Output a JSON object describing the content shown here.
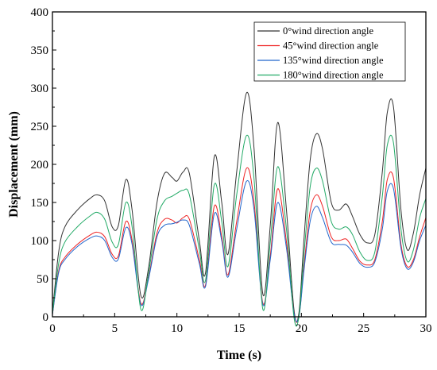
{
  "chart_data": {
    "type": "line",
    "xlabel": "Time (s)",
    "ylabel": "Displacement (mm)",
    "xlim": [
      0,
      30
    ],
    "ylim": [
      0,
      400
    ],
    "xticks": [
      0,
      5,
      10,
      15,
      20,
      25,
      30
    ],
    "yticks": [
      0,
      50,
      100,
      150,
      200,
      250,
      300,
      350,
      400
    ],
    "grid": false,
    "legend_position": "top-right",
    "series": [
      {
        "name": "0°wind direction angle",
        "color": "#333333",
        "x": [
          0,
          0.5,
          1,
          2,
          3,
          3.6,
          4.2,
          4.8,
          5.3,
          5.9,
          6.4,
          7.1,
          7.7,
          8.4,
          9.0,
          9.6,
          10.0,
          10.5,
          11.0,
          11.8,
          12.3,
          13.0,
          13.6,
          14.1,
          14.8,
          15.6,
          16.2,
          16.9,
          17.5,
          18.1,
          18.8,
          19.4,
          19.8,
          20.2,
          20.7,
          21.2,
          21.7,
          22.4,
          23.0,
          23.6,
          24.1,
          24.7,
          25.3,
          25.9,
          26.5,
          26.9,
          27.4,
          28.0,
          28.5,
          29.0,
          29.5,
          30.0
        ],
        "y": [
          5,
          85,
          118,
          140,
          155,
          160,
          152,
          118,
          120,
          180,
          140,
          28,
          62,
          150,
          188,
          183,
          178,
          190,
          188,
          100,
          58,
          210,
          150,
          82,
          190,
          294,
          220,
          30,
          120,
          255,
          140,
          10,
          5,
          100,
          205,
          240,
          220,
          150,
          140,
          148,
          132,
          108,
          97,
          108,
          190,
          268,
          275,
          140,
          88,
          110,
          160,
          195
        ]
      },
      {
        "name": "45°wind direction angle",
        "color": "#ee2222",
        "x": [
          0,
          0.5,
          1,
          2,
          3,
          3.6,
          4.2,
          4.8,
          5.3,
          5.9,
          6.4,
          7.1,
          7.7,
          8.4,
          9.0,
          9.6,
          10.0,
          10.5,
          11.0,
          11.8,
          12.3,
          13.0,
          13.6,
          14.1,
          14.8,
          15.6,
          16.2,
          16.9,
          17.5,
          18.1,
          18.8,
          19.4,
          19.8,
          20.2,
          20.7,
          21.2,
          21.7,
          22.4,
          23.0,
          23.6,
          24.1,
          24.7,
          25.3,
          25.9,
          26.5,
          26.9,
          27.4,
          28.0,
          28.5,
          29.0,
          29.5,
          30.0
        ],
        "y": [
          3,
          60,
          78,
          95,
          107,
          111,
          105,
          82,
          80,
          125,
          100,
          18,
          50,
          110,
          128,
          127,
          123,
          130,
          128,
          75,
          42,
          145,
          105,
          55,
          125,
          195,
          150,
          18,
          80,
          168,
          98,
          5,
          0,
          65,
          138,
          160,
          145,
          105,
          100,
          102,
          90,
          73,
          68,
          75,
          125,
          180,
          182,
          95,
          66,
          75,
          105,
          130
        ]
      },
      {
        "name": "135°wind direction angle",
        "color": "#2266cc",
        "x": [
          0,
          0.5,
          1,
          2,
          3,
          3.6,
          4.2,
          4.8,
          5.3,
          5.9,
          6.4,
          7.1,
          7.7,
          8.4,
          9.0,
          9.6,
          10.0,
          10.5,
          11.0,
          11.8,
          12.3,
          13.0,
          13.6,
          14.1,
          14.8,
          15.6,
          16.2,
          16.9,
          17.5,
          18.1,
          18.8,
          19.4,
          19.8,
          20.2,
          20.7,
          21.2,
          21.7,
          22.4,
          23.0,
          23.6,
          24.1,
          24.7,
          25.3,
          25.9,
          26.5,
          26.9,
          27.4,
          28.0,
          28.5,
          29.0,
          29.5,
          30.0
        ],
        "y": [
          3,
          58,
          75,
          92,
          103,
          106,
          100,
          78,
          76,
          117,
          95,
          16,
          48,
          105,
          120,
          122,
          124,
          127,
          120,
          70,
          40,
          135,
          100,
          52,
          115,
          178,
          140,
          16,
          75,
          150,
          90,
          5,
          0,
          60,
          125,
          145,
          130,
          98,
          95,
          94,
          85,
          70,
          65,
          72,
          115,
          165,
          168,
          90,
          63,
          72,
          100,
          120
        ]
      },
      {
        "name": "180°wind direction angle",
        "color": "#22aa66",
        "x": [
          0,
          0.5,
          1,
          2,
          3,
          3.6,
          4.2,
          4.8,
          5.3,
          5.9,
          6.4,
          7.1,
          7.7,
          8.4,
          9.0,
          9.6,
          10.0,
          10.5,
          11.0,
          11.8,
          12.3,
          13.0,
          13.6,
          14.1,
          14.8,
          15.6,
          16.2,
          16.9,
          17.5,
          18.1,
          18.8,
          19.4,
          19.8,
          20.2,
          20.7,
          21.2,
          21.7,
          22.4,
          23.0,
          23.6,
          24.1,
          24.7,
          25.3,
          25.9,
          26.5,
          26.9,
          27.4,
          28.0,
          28.5,
          29.0,
          29.5,
          30.0
        ],
        "y": [
          4,
          70,
          98,
          118,
          132,
          137,
          128,
          98,
          95,
          150,
          118,
          10,
          55,
          128,
          152,
          158,
          162,
          166,
          160,
          88,
          48,
          173,
          125,
          66,
          160,
          238,
          180,
          10,
          98,
          197,
          115,
          0,
          0,
          80,
          170,
          195,
          178,
          125,
          115,
          118,
          108,
          85,
          74,
          85,
          158,
          225,
          228,
          115,
          73,
          88,
          130,
          155
        ]
      }
    ]
  }
}
